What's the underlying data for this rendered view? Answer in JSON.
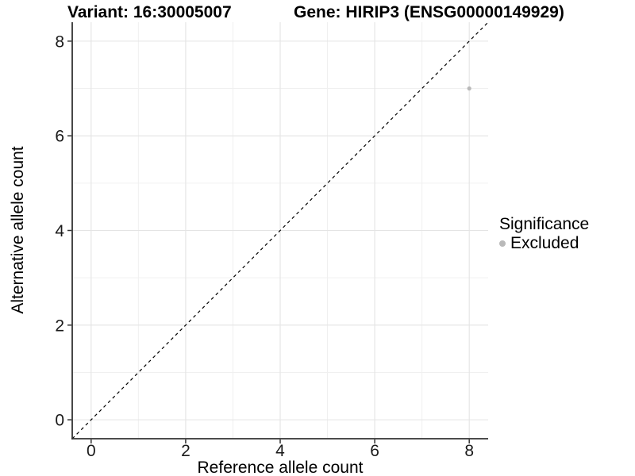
{
  "chart_data": {
    "type": "scatter",
    "title_left": "Variant: 16:30005007",
    "title_right": "Gene: HIRIP3 (ENSG00000149929)",
    "xlabel": "Reference allele count",
    "ylabel": "Alternative allele count",
    "xlim": [
      -0.4,
      8.4
    ],
    "ylim": [
      -0.4,
      8.4
    ],
    "x_major_ticks": [
      0,
      2,
      4,
      6,
      8
    ],
    "y_major_ticks": [
      0,
      2,
      4,
      6,
      8
    ],
    "x_minor_gridlines": [
      1,
      3,
      5,
      7
    ],
    "y_minor_gridlines": [
      1,
      3,
      5,
      7
    ],
    "grid": true,
    "identity_line": {
      "style": "dashed",
      "color": "#000000",
      "from": -0.4,
      "to": 8.4
    },
    "points": [
      {
        "x": 8,
        "y": 7,
        "series": "Excluded"
      }
    ],
    "series": [
      {
        "name": "Excluded",
        "color": "#b9b9b9"
      }
    ],
    "legend": {
      "title": "Significance",
      "position": "right",
      "items": [
        {
          "label": "Excluded",
          "color": "#b9b9b9"
        }
      ]
    },
    "colors": {
      "background": "#ffffff",
      "grid_major": "#e4e4e4",
      "grid_minor": "#f0f0f0",
      "axis_line": "#333333",
      "tick_mark": "#333333",
      "tick_label": "#1a1a1a"
    }
  }
}
